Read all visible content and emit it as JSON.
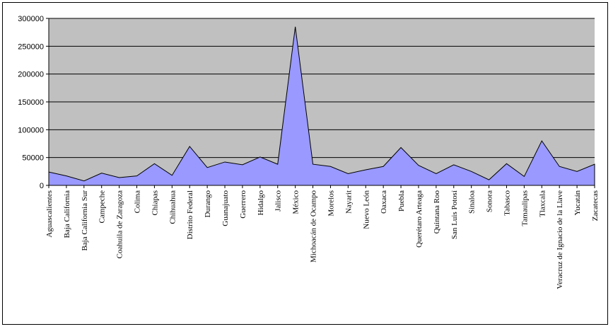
{
  "chart_data": {
    "type": "area",
    "title": "",
    "xlabel": "",
    "ylabel": "",
    "ylim": [
      0,
      300000
    ],
    "yticks": [
      0,
      50000,
      100000,
      150000,
      200000,
      250000,
      300000
    ],
    "grid": true,
    "legend": "none",
    "colors": {
      "plot_bg": "#c0c0c0",
      "area_fill": "#9999ff",
      "line": "#000000",
      "grid": "#000000"
    },
    "categories": [
      "Aguascalientes",
      "Baja California",
      "Baja California Sur",
      "Campeche",
      "Coahuila de Zaragoza",
      "Colima",
      "Chiapas",
      "Chihuahua",
      "Distrito Federal",
      "Durango",
      "Guanajuato",
      "Guerrero",
      "Hidalgo",
      "Jalisco",
      "México",
      "Michoacán de Ocampo",
      "Morelos",
      "Nayarit",
      "Nuevo León",
      "Oaxaca",
      "Puebla",
      "Querétaro Arteaga",
      "Quintana Roo",
      "San Luis Potosí",
      "Sinaloa",
      "Sonora",
      "Tabasco",
      "Tamaulipas",
      "Tlaxcala",
      "Veracruz de Ignacio de la Llave",
      "Yucatán",
      "Zacatecas"
    ],
    "series": [
      {
        "values": [
          24000,
          17000,
          8000,
          22000,
          14000,
          17000,
          39000,
          18000,
          70000,
          32000,
          42000,
          37000,
          51000,
          38000,
          285000,
          38000,
          34000,
          21000,
          28000,
          34000,
          68000,
          36000,
          21000,
          37000,
          25000,
          10000,
          39000,
          16000,
          80000,
          34000,
          25000,
          38000
        ]
      }
    ]
  }
}
